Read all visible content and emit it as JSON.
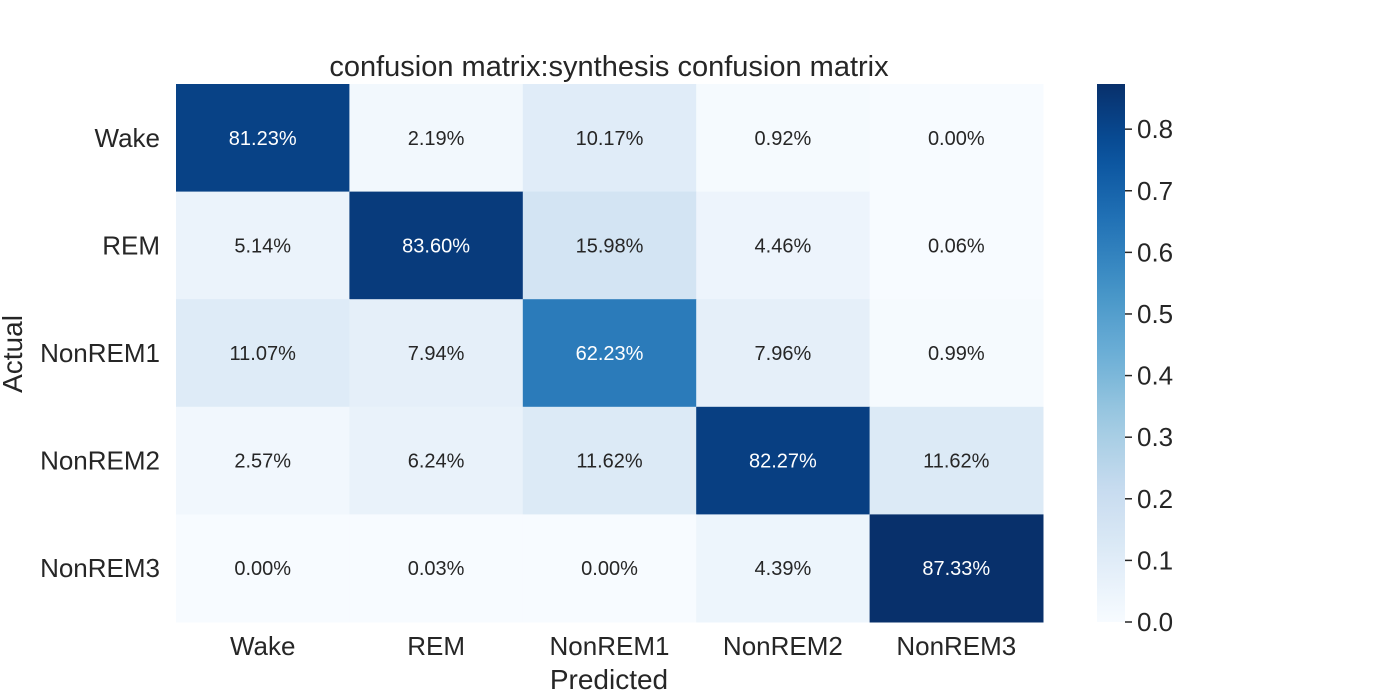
{
  "chart_data": {
    "type": "heatmap",
    "title": "confusion matrix:synthesis confusion matrix",
    "xlabel": "Predicted",
    "ylabel": "Actual",
    "x_categories": [
      "Wake",
      "REM",
      "NonREM1",
      "NonREM2",
      "NonREM3"
    ],
    "y_categories": [
      "Wake",
      "REM",
      "NonREM1",
      "NonREM2",
      "NonREM3"
    ],
    "values": [
      [
        0.8123,
        0.0219,
        0.1017,
        0.0092,
        0.0
      ],
      [
        0.0514,
        0.836,
        0.1598,
        0.0446,
        0.0006
      ],
      [
        0.1107,
        0.0794,
        0.6223,
        0.0796,
        0.0099
      ],
      [
        0.0257,
        0.0624,
        0.1162,
        0.8227,
        0.1162
      ],
      [
        0.0,
        0.0003,
        0.0,
        0.0439,
        0.8733
      ]
    ],
    "cell_labels": [
      [
        "81.23%",
        "2.19%",
        "10.17%",
        "0.92%",
        "0.00%"
      ],
      [
        "5.14%",
        "83.60%",
        "15.98%",
        "4.46%",
        "0.06%"
      ],
      [
        "11.07%",
        "7.94%",
        "62.23%",
        "7.96%",
        "0.99%"
      ],
      [
        "2.57%",
        "6.24%",
        "11.62%",
        "82.27%",
        "11.62%"
      ],
      [
        "0.00%",
        "0.03%",
        "0.00%",
        "4.39%",
        "87.33%"
      ]
    ],
    "colormap": "Blues",
    "colorbar": {
      "min": 0.0,
      "max": 0.8733,
      "ticks": [
        0.0,
        0.1,
        0.2,
        0.3,
        0.4,
        0.5,
        0.6,
        0.7,
        0.8
      ],
      "tick_labels": [
        "0.0",
        "0.1",
        "0.2",
        "0.3",
        "0.4",
        "0.5",
        "0.6",
        "0.7",
        "0.8"
      ]
    },
    "grid": false,
    "legend": "colorbar-right"
  }
}
